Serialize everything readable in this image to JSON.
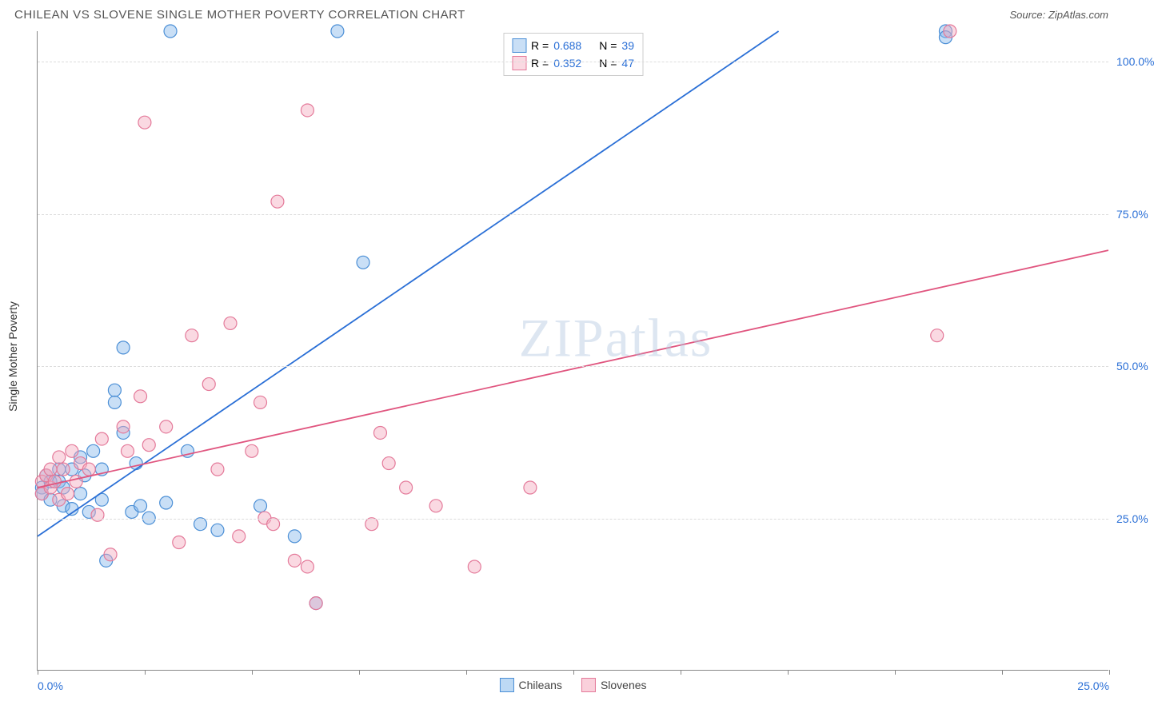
{
  "header": {
    "title": "CHILEAN VS SLOVENE SINGLE MOTHER POVERTY CORRELATION CHART",
    "source": "Source: ZipAtlas.com"
  },
  "chart": {
    "type": "scatter",
    "ylabel": "Single Mother Poverty",
    "watermark": "ZIPatlas",
    "background_color": "#ffffff",
    "grid_color": "#dddddd",
    "axis_color": "#888888",
    "label_color_x": "#2a6fd6",
    "label_color_y": "#2a6fd6",
    "xlim": [
      0,
      25
    ],
    "ylim": [
      0,
      105
    ],
    "xticks": [
      0,
      2.5,
      5,
      7.5,
      10,
      12.5,
      15,
      17.5,
      20,
      22.5,
      25
    ],
    "xtick_labels": {
      "0": "0.0%",
      "25": "25.0%"
    },
    "yticks": [
      25,
      50,
      75,
      100
    ],
    "ytick_labels": {
      "25": "25.0%",
      "50": "50.0%",
      "75": "75.0%",
      "100": "100.0%"
    },
    "marker_radius": 8,
    "marker_stroke_width": 1.2,
    "line_width": 1.8,
    "series": [
      {
        "name": "Chileans",
        "fill": "rgba(135,185,235,0.45)",
        "stroke": "#4b8fd6",
        "line_color": "#2a6fd6",
        "R": "0.688",
        "N": "39",
        "points": [
          [
            0.1,
            30
          ],
          [
            0.1,
            29
          ],
          [
            0.2,
            32
          ],
          [
            0.3,
            31
          ],
          [
            0.3,
            28
          ],
          [
            0.5,
            33
          ],
          [
            0.5,
            31
          ],
          [
            0.6,
            30
          ],
          [
            0.6,
            27
          ],
          [
            0.8,
            33
          ],
          [
            0.8,
            26.5
          ],
          [
            1.0,
            35
          ],
          [
            1.0,
            29
          ],
          [
            1.1,
            32
          ],
          [
            1.2,
            26
          ],
          [
            1.3,
            36
          ],
          [
            1.5,
            33
          ],
          [
            1.5,
            28
          ],
          [
            1.6,
            18
          ],
          [
            1.8,
            46
          ],
          [
            1.8,
            44
          ],
          [
            2.0,
            53
          ],
          [
            2.0,
            39
          ],
          [
            2.2,
            26
          ],
          [
            2.3,
            34
          ],
          [
            2.4,
            27
          ],
          [
            2.6,
            25
          ],
          [
            3.0,
            27.5
          ],
          [
            3.1,
            105
          ],
          [
            3.5,
            36
          ],
          [
            3.8,
            24
          ],
          [
            4.2,
            23
          ],
          [
            5.2,
            27
          ],
          [
            6.0,
            22
          ],
          [
            6.5,
            11
          ],
          [
            7.0,
            105
          ],
          [
            7.6,
            67
          ],
          [
            21.2,
            105
          ],
          [
            21.2,
            104
          ]
        ],
        "regression": {
          "x1": 0,
          "y1": 22,
          "x2": 17.3,
          "y2": 105
        }
      },
      {
        "name": "Slovenes",
        "fill": "rgba(245,170,190,0.45)",
        "stroke": "#e47a9a",
        "line_color": "#e0557f",
        "R": "0.352",
        "N": "47",
        "points": [
          [
            0.1,
            31
          ],
          [
            0.1,
            29
          ],
          [
            0.2,
            32
          ],
          [
            0.3,
            30
          ],
          [
            0.3,
            33
          ],
          [
            0.4,
            31
          ],
          [
            0.5,
            35
          ],
          [
            0.5,
            28
          ],
          [
            0.6,
            33
          ],
          [
            0.7,
            29
          ],
          [
            0.8,
            36
          ],
          [
            0.9,
            31
          ],
          [
            1.0,
            34
          ],
          [
            1.2,
            33
          ],
          [
            1.4,
            25.5
          ],
          [
            1.5,
            38
          ],
          [
            1.7,
            19
          ],
          [
            2.0,
            40
          ],
          [
            2.1,
            36
          ],
          [
            2.4,
            45
          ],
          [
            2.5,
            90
          ],
          [
            2.6,
            37
          ],
          [
            3.0,
            40
          ],
          [
            3.3,
            21
          ],
          [
            3.6,
            55
          ],
          [
            4.0,
            47
          ],
          [
            4.2,
            33
          ],
          [
            4.5,
            57
          ],
          [
            4.7,
            22
          ],
          [
            5.0,
            36
          ],
          [
            5.2,
            44
          ],
          [
            5.3,
            25
          ],
          [
            5.5,
            24
          ],
          [
            5.6,
            77
          ],
          [
            6.0,
            18
          ],
          [
            6.3,
            17
          ],
          [
            6.3,
            92
          ],
          [
            6.5,
            11
          ],
          [
            7.8,
            24
          ],
          [
            8.0,
            39
          ],
          [
            8.2,
            34
          ],
          [
            8.6,
            30
          ],
          [
            9.3,
            27
          ],
          [
            10.2,
            17
          ],
          [
            11.5,
            30
          ],
          [
            21.0,
            55
          ],
          [
            21.3,
            105
          ]
        ],
        "regression": {
          "x1": 0,
          "y1": 30,
          "x2": 25,
          "y2": 69
        }
      }
    ],
    "legend_top": {
      "R_label": "R =",
      "N_label": "N =",
      "stat_color": "#2a6fd6"
    },
    "legend_bottom": [
      {
        "label": "Chileans",
        "fill": "rgba(135,185,235,0.55)",
        "stroke": "#4b8fd6"
      },
      {
        "label": "Slovenes",
        "fill": "rgba(245,170,190,0.55)",
        "stroke": "#e47a9a"
      }
    ]
  }
}
